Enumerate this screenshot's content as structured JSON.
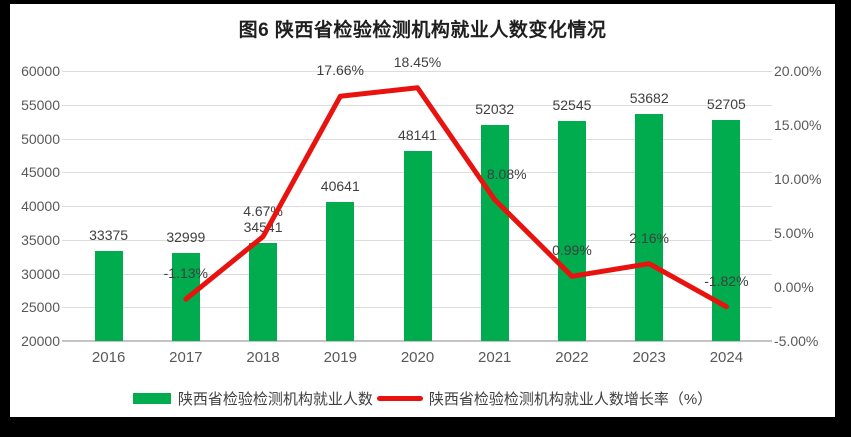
{
  "chart_data": {
    "type": "combo",
    "title": "图6 陕西省检验检测机构就业人数变化情况",
    "categories": [
      "2016",
      "2017",
      "2018",
      "2019",
      "2020",
      "2021",
      "2022",
      "2023",
      "2024"
    ],
    "series": [
      {
        "name": "陕西省检验检测机构就业人数",
        "type": "bar",
        "axis": "left",
        "color": "#00AC4E",
        "values": [
          33375,
          32999,
          34541,
          40641,
          48141,
          52032,
          52545,
          53682,
          52705
        ],
        "data_labels": [
          "33375",
          "32999",
          "34541",
          "40641",
          "48141",
          "52032",
          "52545",
          "53682",
          "52705"
        ]
      },
      {
        "name": "陕西省检验检测机构就业人数增长率（%）",
        "type": "line",
        "axis": "right",
        "color": "#E8120F",
        "values": [
          null,
          -1.13,
          4.67,
          17.66,
          18.45,
          8.08,
          0.99,
          2.16,
          -1.82
        ],
        "data_labels": [
          null,
          "-1.13%",
          "4.67%",
          "17.66%",
          "18.45%",
          "8.08%",
          "0.99%",
          "2.16%",
          "-1.82%"
        ],
        "label_dx": [
          0,
          0,
          0,
          0,
          0,
          12,
          0,
          0,
          0
        ]
      }
    ],
    "left_axis": {
      "min": 20000,
      "max": 60000,
      "step": 5000,
      "tick_labels": [
        "20000",
        "25000",
        "30000",
        "35000",
        "40000",
        "45000",
        "50000",
        "55000",
        "60000"
      ]
    },
    "right_axis": {
      "min": -5,
      "max": 20,
      "step": 5,
      "tick_labels": [
        "-5.00%",
        "0.00%",
        "5.00%",
        "10.00%",
        "15.00%",
        "20.00%"
      ]
    },
    "grid": true,
    "legend_position": "bottom",
    "colors": {
      "bar": "#00AC4E",
      "line": "#E8120F",
      "axis_text": "#595959",
      "data_label_text": "#3F3F3F",
      "gridline": "#DCDCDC",
      "background": "#FFFFFF",
      "frame": "#000000"
    }
  }
}
